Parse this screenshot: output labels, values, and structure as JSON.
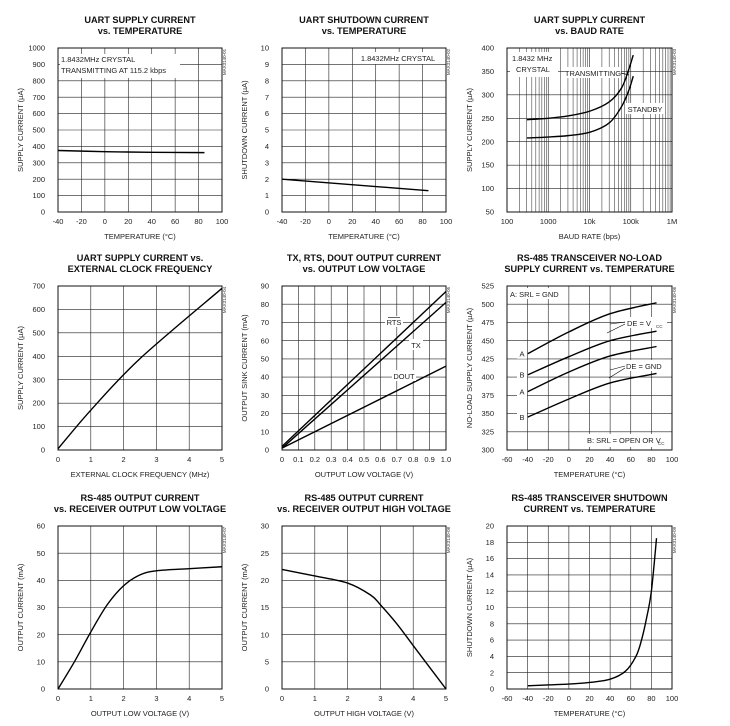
{
  "chart_data": [
    {
      "type": "line",
      "title": [
        "UART SUPPLY CURRENT",
        "vs. TEMPERATURE"
      ],
      "xlabel": "TEMPERATURE (°C)",
      "ylabel": "SUPPLY CURRENT (µA)",
      "xlim": [
        -40,
        100
      ],
      "ylim": [
        0,
        1000
      ],
      "xticks": [
        -40,
        -20,
        0,
        20,
        40,
        60,
        80,
        100
      ],
      "yticks": [
        0,
        100,
        200,
        300,
        400,
        500,
        600,
        700,
        800,
        900,
        1000
      ],
      "grid": true,
      "code": "MAX3140-01",
      "annotations": [
        {
          "lines": [
            "1.8432MHz CRYSTAL",
            "TRANSMITTING AT 115.2 kbps"
          ]
        }
      ],
      "series": [
        {
          "x": [
            -40,
            0,
            40,
            85
          ],
          "y": [
            375,
            368,
            364,
            362
          ]
        }
      ]
    },
    {
      "type": "line",
      "title": [
        "UART SHUTDOWN CURRENT",
        "vs. TEMPERATURE"
      ],
      "xlabel": "TEMPERATURE (°C)",
      "ylabel": "SHUTDOWN CURRENT (µA)",
      "xlim": [
        -40,
        100
      ],
      "ylim": [
        0,
        10
      ],
      "xticks": [
        -40,
        -20,
        0,
        20,
        40,
        60,
        80,
        100
      ],
      "yticks": [
        0,
        1,
        2,
        3,
        4,
        5,
        6,
        7,
        8,
        9,
        10
      ],
      "grid": true,
      "code": "MAX3140-02",
      "annotations": [
        {
          "lines": [
            "1.8432MHz CRYSTAL"
          ]
        }
      ],
      "series": [
        {
          "x": [
            -40,
            85
          ],
          "y": [
            2.0,
            1.3
          ]
        }
      ]
    },
    {
      "type": "line",
      "title": [
        "UART SUPPLY CURRENT",
        "vs. BAUD RATE"
      ],
      "xlabel": "BAUD RATE (bps)",
      "ylabel": "SUPPLY CURRENT (µA)",
      "xscale": "log",
      "xlim": [
        100,
        1000000
      ],
      "ylim": [
        50,
        400
      ],
      "xticks": [
        100,
        1000,
        10000,
        100000,
        1000000
      ],
      "xticklabels": [
        "100",
        "1000",
        "10k",
        "100k",
        "1M"
      ],
      "yticks": [
        50,
        100,
        150,
        200,
        250,
        300,
        350,
        400
      ],
      "grid": true,
      "code": "MAX3140-03",
      "annotations": [
        {
          "lines": [
            "1.8432 MHz",
            "CRYSTAL"
          ]
        }
      ],
      "series": [
        {
          "name": "TRANSMITTING",
          "x": [
            300,
            1000,
            3000,
            10000,
            30000,
            60000,
            90000,
            115000
          ],
          "y": [
            247,
            250,
            255,
            265,
            285,
            315,
            355,
            385
          ]
        },
        {
          "name": "STANDBY",
          "x": [
            300,
            1000,
            3000,
            10000,
            30000,
            60000,
            90000,
            115000
          ],
          "y": [
            208,
            210,
            213,
            220,
            240,
            275,
            310,
            340
          ]
        }
      ]
    },
    {
      "type": "line",
      "title": [
        "UART SUPPLY CURRENT vs.",
        "EXTERNAL CLOCK FREQUENCY"
      ],
      "xlabel": "EXTERNAL CLOCK FREQUENCY (MHz)",
      "ylabel": "SUPPLY CURRENT (µA)",
      "xlim": [
        0,
        5
      ],
      "ylim": [
        0,
        700
      ],
      "xticks": [
        0,
        1,
        2,
        3,
        4,
        5
      ],
      "yticks": [
        0,
        100,
        200,
        300,
        400,
        500,
        600,
        700
      ],
      "grid": true,
      "code": "MAX3140-04",
      "series": [
        {
          "x": [
            0,
            1,
            2.5,
            5
          ],
          "y": [
            5,
            170,
            390,
            690
          ]
        }
      ]
    },
    {
      "type": "line",
      "title": [
        "TX, RTS, DOUT OUTPUT CURRENT",
        "vs. OUTPUT LOW VOLTAGE"
      ],
      "xlabel": "OUTPUT LOW VOLTAGE (V)",
      "ylabel": "OUTPUT SINK CURRENT (mA)",
      "xlim": [
        0,
        1.0
      ],
      "ylim": [
        0,
        90
      ],
      "xticks": [
        0,
        0.1,
        0.2,
        0.3,
        0.4,
        0.5,
        0.6,
        0.7,
        0.8,
        0.9,
        1.0
      ],
      "xticklabels": [
        "0",
        "0.1",
        "0.2",
        "0.3",
        "0.4",
        "0.5",
        "0.6",
        "0.7",
        "0.8",
        "0.9",
        "1.0"
      ],
      "yticks": [
        0,
        10,
        20,
        30,
        40,
        50,
        60,
        70,
        80,
        90
      ],
      "grid": true,
      "code": "MAX3140-05",
      "series": [
        {
          "name": "RTS",
          "x": [
            0,
            1.0
          ],
          "y": [
            2,
            87
          ]
        },
        {
          "name": "TX",
          "x": [
            0,
            1.0
          ],
          "y": [
            1,
            81
          ]
        },
        {
          "name": "DOUT",
          "x": [
            0,
            1.0
          ],
          "y": [
            1,
            46
          ]
        }
      ]
    },
    {
      "type": "line",
      "title": [
        "RS-485 TRANSCEIVER NO-LOAD",
        "SUPPLY CURRENT vs. TEMPERATURE"
      ],
      "xlabel": "TEMPERATURE (°C)",
      "ylabel": "NO-LOAD SUPPLY CURRENT (µA)",
      "xlim": [
        -60,
        100
      ],
      "ylim": [
        300,
        525
      ],
      "xticks": [
        -60,
        -40,
        -20,
        0,
        20,
        40,
        60,
        80,
        100
      ],
      "yticks": [
        300,
        325,
        350,
        375,
        400,
        425,
        450,
        475,
        500,
        525
      ],
      "grid": true,
      "code": "MAX3140-06",
      "notes": {
        "top": "A: SRL = GND",
        "bottom": "B: SRL = OPEN OR V",
        "bottom_sub": "CC",
        "de_vcc": "DE = V",
        "de_vcc_sub": "CC",
        "de_gnd": "DE = GND"
      },
      "series": [
        {
          "name": "A",
          "x": [
            -40,
            0,
            40,
            85
          ],
          "y": [
            432,
            462,
            487,
            502
          ]
        },
        {
          "name": "B",
          "x": [
            -40,
            0,
            40,
            85
          ],
          "y": [
            403,
            428,
            450,
            463
          ]
        },
        {
          "name": "A",
          "x": [
            -40,
            0,
            40,
            85
          ],
          "y": [
            380,
            407,
            429,
            442
          ]
        },
        {
          "name": "B",
          "x": [
            -40,
            0,
            40,
            85
          ],
          "y": [
            345,
            370,
            392,
            405
          ]
        }
      ]
    },
    {
      "type": "line",
      "title": [
        "RS-485 OUTPUT CURRENT",
        "vs. RECEIVER OUTPUT LOW VOLTAGE"
      ],
      "xlabel": "OUTPUT LOW VOLTAGE (V)",
      "ylabel": "OUTPUT CURRENT (mA)",
      "xlim": [
        0,
        5
      ],
      "ylim": [
        0,
        60
      ],
      "xticks": [
        0,
        1,
        2,
        3,
        4,
        5
      ],
      "yticks": [
        0,
        10,
        20,
        30,
        40,
        50,
        60
      ],
      "grid": true,
      "code": "MAX3140-07",
      "series": [
        {
          "x": [
            0,
            0.5,
            1,
            1.5,
            2,
            2.5,
            3,
            4,
            5
          ],
          "y": [
            0,
            10,
            21,
            31,
            38,
            42,
            43.5,
            44.3,
            45
          ]
        }
      ]
    },
    {
      "type": "line",
      "title": [
        "RS-485 OUTPUT CURRENT",
        "vs. RECEIVER OUTPUT HIGH VOLTAGE"
      ],
      "xlabel": "OUTPUT HIGH VOLTAGE (V)",
      "ylabel": "OUTPUT CURRENT (mA)",
      "xlim": [
        0,
        5
      ],
      "ylim": [
        0,
        30
      ],
      "xticks": [
        0,
        1,
        2,
        3,
        4,
        5
      ],
      "yticks": [
        0,
        5,
        10,
        15,
        20,
        25,
        30
      ],
      "grid": true,
      "code": "MAX3140-08",
      "series": [
        {
          "x": [
            0,
            1,
            2,
            2.7,
            3,
            3.5,
            4,
            4.5,
            5
          ],
          "y": [
            22,
            20.8,
            19.5,
            17.3,
            15.5,
            12,
            8,
            4,
            0
          ]
        }
      ]
    },
    {
      "type": "line",
      "title": [
        "RS-485 TRANSCEIVER SHUTDOWN",
        "CURRENT vs. TEMPERATURE"
      ],
      "xlabel": "TEMPERATURE (°C)",
      "ylabel": "SHUTDOWN CURRENT (µA)",
      "xlim": [
        -60,
        100
      ],
      "ylim": [
        0,
        20
      ],
      "xticks": [
        -60,
        -40,
        -20,
        0,
        20,
        40,
        60,
        80,
        100
      ],
      "yticks": [
        0,
        2,
        4,
        6,
        8,
        10,
        12,
        14,
        16,
        18,
        20
      ],
      "grid": true,
      "code": "MAX3140-09",
      "series": [
        {
          "x": [
            -40,
            0,
            20,
            40,
            55,
            65,
            70,
            75,
            80,
            85
          ],
          "y": [
            0.4,
            0.6,
            0.8,
            1.2,
            2.2,
            4.0,
            5.8,
            8.5,
            12.0,
            18.5
          ]
        }
      ]
    }
  ]
}
